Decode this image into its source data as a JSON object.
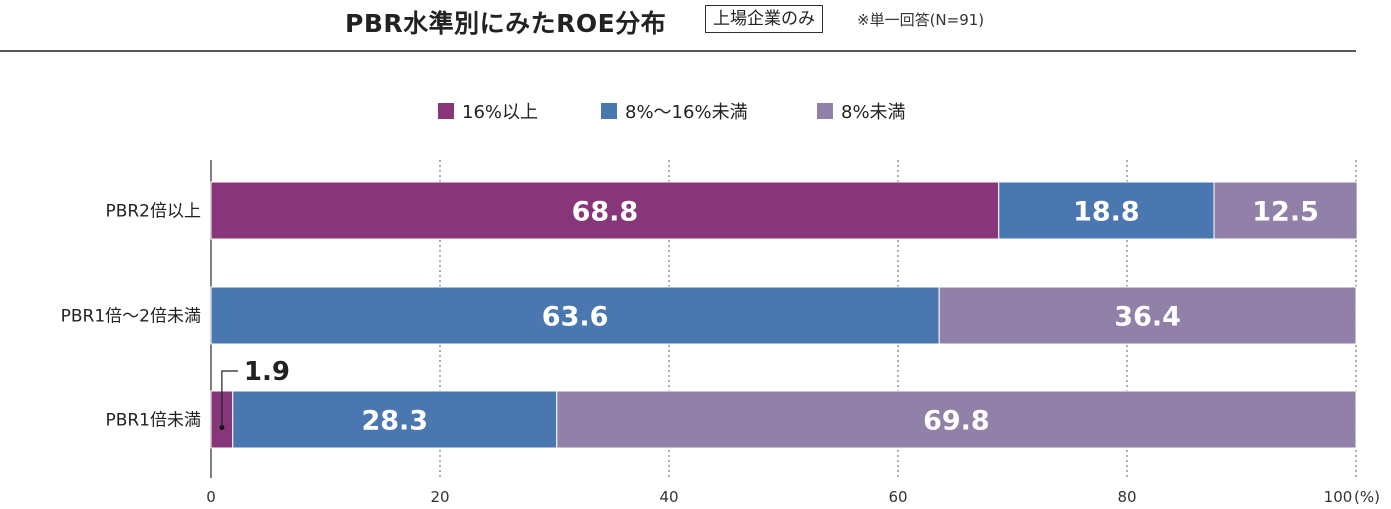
{
  "header": {
    "title": "PBR水準別にみたROE分布",
    "badge": "上場企業のみ",
    "note": "※単一回答(N=91)"
  },
  "chart_data": {
    "type": "bar",
    "orientation": "horizontal",
    "stacked": true,
    "title": "PBR水準別にみたROE分布",
    "categories": [
      "PBR2倍以上",
      "PBR1倍〜2倍未満",
      "PBR1倍未満"
    ],
    "series": [
      {
        "name": "16%以上",
        "color": "#873779",
        "values": [
          68.8,
          0,
          1.9
        ]
      },
      {
        "name": "8%〜16%未満",
        "color": "#4b77b1",
        "values": [
          18.8,
          63.6,
          28.3
        ]
      },
      {
        "name": "8%未満",
        "color": "#9180a7",
        "values": [
          12.5,
          36.4,
          69.8
        ]
      }
    ],
    "xlim": [
      0,
      100
    ],
    "xticks": [
      "0",
      "20",
      "40",
      "60",
      "80",
      "100"
    ],
    "x_unit": "(%)",
    "grid": true,
    "legend_position": "top"
  }
}
